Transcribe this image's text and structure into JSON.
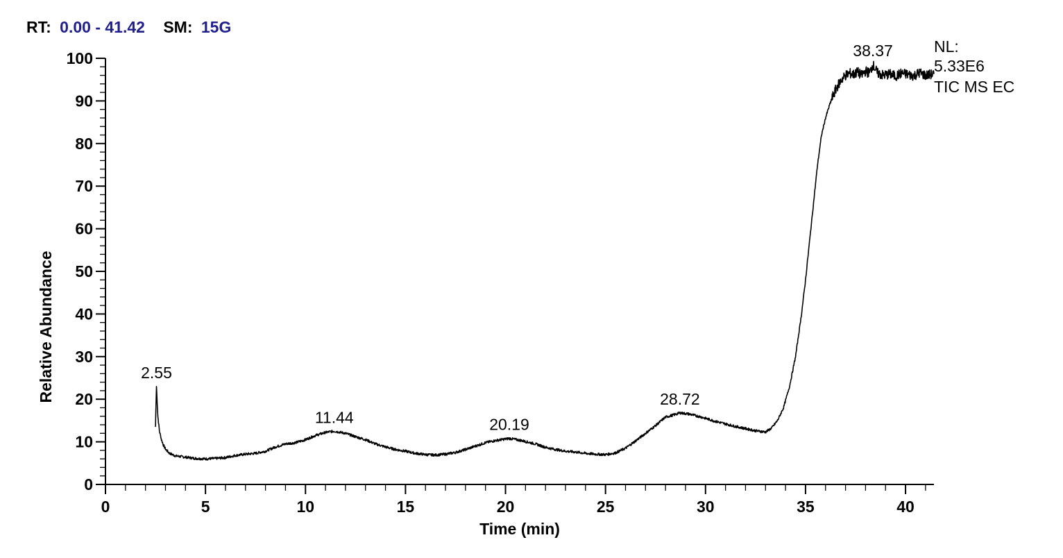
{
  "header": {
    "rt_label": "RT:",
    "rt_value": "0.00 - 41.42",
    "sm_label": "SM:",
    "sm_value": "15G"
  },
  "normalization": {
    "line1": "NL:",
    "line2": "5.33E6",
    "line3": "TIC  MS EC"
  },
  "colors": {
    "trace": "#000000",
    "header_value": "#1f1f8f"
  },
  "chart_data": {
    "type": "line",
    "title": "",
    "xlabel": "Time (min)",
    "ylabel": "Relative Abundance",
    "xlim": [
      0,
      41.42
    ],
    "ylim": [
      0,
      100
    ],
    "x_ticks": [
      0,
      5,
      10,
      15,
      20,
      25,
      30,
      35,
      40
    ],
    "x_tick_labels": [
      "0",
      "5",
      "10",
      "15",
      "20",
      "25",
      "30",
      "35",
      "40"
    ],
    "y_ticks": [
      0,
      10,
      20,
      30,
      40,
      50,
      60,
      70,
      80,
      90,
      100
    ],
    "y_tick_labels": [
      "0",
      "10",
      "20",
      "30",
      "40",
      "50",
      "60",
      "70",
      "80",
      "90",
      "100"
    ],
    "grid": false,
    "series": [
      {
        "x": [
          2.5,
          2.55,
          2.62,
          2.7,
          2.8,
          2.9,
          3.0,
          3.2,
          3.5,
          4.0,
          4.5,
          5.0,
          5.5,
          6.0,
          6.5,
          7.0,
          7.5,
          8.0,
          8.5,
          9.0,
          9.5,
          10.0,
          10.5,
          11.0,
          11.44,
          12.0,
          12.5,
          13.0,
          13.5,
          14.0,
          14.5,
          15.0,
          15.5,
          16.0,
          16.5,
          17.0,
          17.5,
          18.0,
          18.5,
          19.0,
          19.5,
          20.19,
          20.8,
          21.5,
          22.0,
          22.5,
          23.0,
          23.5,
          24.0,
          24.5,
          25.0,
          25.5,
          26.0,
          26.5,
          27.0,
          27.5,
          28.0,
          28.4,
          28.72,
          29.2,
          29.8,
          30.5,
          31.0,
          31.5,
          32.0,
          32.5,
          33.0,
          33.3,
          33.6,
          33.9,
          34.2,
          34.5,
          34.8,
          35.0,
          35.2,
          35.4,
          35.6,
          35.8,
          36.0,
          36.2,
          36.4,
          36.6,
          36.8,
          37.0,
          37.2,
          37.4,
          37.6,
          37.8,
          38.0,
          38.2,
          38.37,
          38.6,
          38.9,
          39.2,
          39.5,
          39.8,
          40.1,
          40.4,
          40.7,
          41.0,
          41.42
        ],
        "y": [
          13.5,
          23.0,
          16.0,
          12.5,
          10.5,
          9.2,
          8.3,
          7.3,
          6.7,
          6.4,
          6.1,
          6.0,
          6.1,
          6.3,
          6.8,
          7.1,
          7.3,
          7.8,
          8.8,
          9.5,
          9.8,
          10.5,
          11.5,
          12.2,
          12.5,
          12.0,
          11.2,
          10.5,
          9.5,
          8.8,
          8.2,
          7.8,
          7.3,
          7.0,
          6.9,
          7.1,
          7.5,
          8.2,
          9.0,
          9.8,
          10.3,
          10.8,
          10.3,
          9.5,
          8.7,
          8.2,
          7.8,
          7.6,
          7.3,
          7.1,
          7.0,
          7.4,
          8.5,
          10.2,
          12.0,
          13.8,
          15.8,
          16.3,
          16.8,
          16.5,
          15.8,
          14.8,
          14.2,
          13.6,
          13.1,
          12.6,
          12.3,
          13.2,
          15.0,
          18.0,
          23.0,
          30.0,
          40.0,
          48.0,
          57.0,
          66.0,
          75.0,
          82.0,
          86.0,
          89.0,
          91.5,
          93.5,
          95.0,
          96.0,
          96.5,
          96.2,
          96.8,
          96.0,
          97.0,
          96.5,
          98.5,
          96.5,
          96.0,
          96.3,
          95.8,
          96.5,
          96.2,
          95.9,
          96.6,
          96.0,
          96.3
        ]
      }
    ],
    "annotations": [
      {
        "x": 2.55,
        "y": 23.0,
        "text": "2.55"
      },
      {
        "x": 11.44,
        "y": 12.5,
        "text": "11.44"
      },
      {
        "x": 20.19,
        "y": 10.8,
        "text": "20.19"
      },
      {
        "x": 28.72,
        "y": 16.8,
        "text": "28.72"
      },
      {
        "x": 38.37,
        "y": 98.5,
        "text": "38.37"
      }
    ]
  }
}
